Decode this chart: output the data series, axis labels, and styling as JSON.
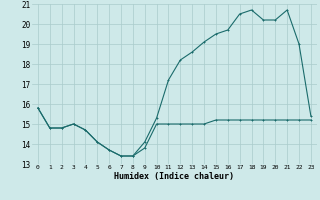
{
  "xlabel": "Humidex (Indice chaleur)",
  "bg_color": "#cee9e9",
  "grid_color": "#aacccc",
  "line_color": "#1a6b6b",
  "series1_x": [
    0,
    1,
    2,
    3,
    4,
    5,
    6,
    7,
    8,
    9,
    10,
    11,
    12,
    13,
    14,
    15,
    16,
    17,
    18,
    19,
    20,
    21,
    22,
    23
  ],
  "series1_y": [
    15.8,
    14.8,
    14.8,
    15.0,
    14.7,
    14.1,
    13.7,
    13.4,
    13.4,
    13.8,
    15.0,
    15.0,
    15.0,
    15.0,
    15.0,
    15.2,
    15.2,
    15.2,
    15.2,
    15.2,
    15.2,
    15.2,
    15.2,
    15.2
  ],
  "series2_x": [
    0,
    1,
    2,
    3,
    4,
    5,
    6,
    7,
    8,
    9,
    10,
    11,
    12,
    13,
    14,
    15,
    16,
    17,
    18,
    19,
    20,
    21,
    22,
    23
  ],
  "series2_y": [
    15.8,
    14.8,
    14.8,
    15.0,
    14.7,
    14.1,
    13.7,
    13.4,
    13.4,
    14.1,
    15.3,
    17.2,
    18.2,
    18.6,
    19.1,
    19.5,
    19.7,
    20.5,
    20.7,
    20.2,
    20.2,
    20.7,
    19.0,
    15.4
  ],
  "ylim": [
    13,
    21
  ],
  "xlim": [
    -0.5,
    23.5
  ],
  "yticks": [
    13,
    14,
    15,
    16,
    17,
    18,
    19,
    20,
    21
  ],
  "xticks": [
    0,
    1,
    2,
    3,
    4,
    5,
    6,
    7,
    8,
    9,
    10,
    11,
    12,
    13,
    14,
    15,
    16,
    17,
    18,
    19,
    20,
    21,
    22,
    23
  ],
  "xtick_labels": [
    "0",
    "1",
    "2",
    "3",
    "4",
    "5",
    "6",
    "7",
    "8",
    "9",
    "10",
    "11",
    "12",
    "13",
    "14",
    "15",
    "16",
    "17",
    "18",
    "19",
    "20",
    "21",
    "22",
    "23"
  ],
  "figsize": [
    3.2,
    2.0
  ],
  "dpi": 100
}
